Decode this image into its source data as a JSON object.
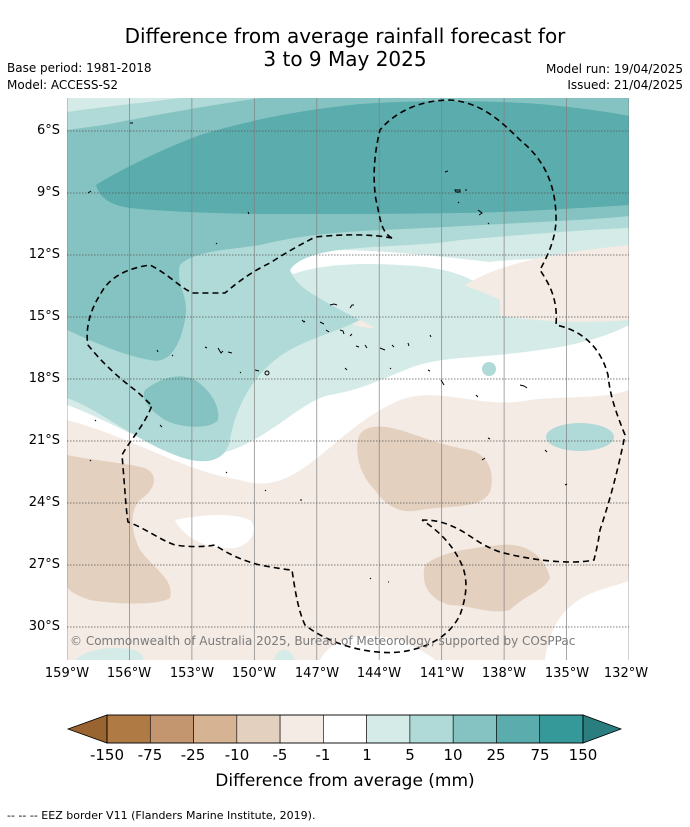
{
  "title": {
    "line1": "Difference from average rainfall forecast for",
    "line2": "3 to 9 May 2025"
  },
  "meta": {
    "base_period": "Base period: 1981-2018",
    "model": "Model: ACCESS-S2",
    "model_run": "Model run: 19/04/2025",
    "issued": "Issued: 21/04/2025"
  },
  "map": {
    "lat_labels": [
      "6°S",
      "9°S",
      "12°S",
      "15°S",
      "18°S",
      "21°S",
      "24°S",
      "27°S",
      "30°S"
    ],
    "lon_labels": [
      "159°W",
      "156°W",
      "153°W",
      "150°W",
      "147°W",
      "144°W",
      "141°W",
      "138°W",
      "135°W",
      "132°W"
    ],
    "credit": "© Commonwealth of Australia 2025, Bureau of Meteorology, supported by COSPPac"
  },
  "colorbar": {
    "ticks": [
      "-150",
      "-75",
      "-25",
      "-10",
      "-5",
      "-1",
      "1",
      "5",
      "10",
      "25",
      "75",
      "150"
    ],
    "colors": [
      "#b07a45",
      "#c49670",
      "#d5b393",
      "#e4d0bf",
      "#f4ebe5",
      "#ffffff",
      "#d5ebe8",
      "#afdad7",
      "#84c3c1",
      "#5aacad",
      "#35999a"
    ],
    "under_color": "#99642f",
    "over_color": "#2a7e80",
    "title": "Difference from average (mm)"
  },
  "footnote": "-- -- -- EEZ border V11 (Flanders Marine Institute, 2019)."
}
